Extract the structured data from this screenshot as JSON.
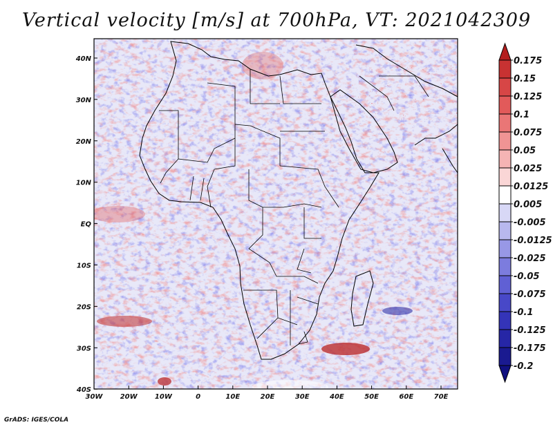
{
  "title": "Vertical velocity [m/s] at 700hPa, VT: 2021042309",
  "credit": "GrADS: IGES/COLA",
  "map": {
    "region": "Africa and surrounding oceans",
    "lon_range": [
      -30,
      76
    ],
    "lat_range": [
      -40,
      45
    ],
    "lon_ticks": [
      "30W",
      "20W",
      "10W",
      "0",
      "10E",
      "20E",
      "30E",
      "40E",
      "50E",
      "60E",
      "70E"
    ],
    "lat_ticks": [
      "40N",
      "30N",
      "20N",
      "10N",
      "EQ",
      "10S",
      "20S",
      "30S",
      "40S"
    ]
  },
  "colorbar": {
    "labels": [
      "0.175",
      "0.15",
      "0.125",
      "0.1",
      "0.075",
      "0.05",
      "0.025",
      "0.0125",
      "0.005",
      "-0.005",
      "-0.0125",
      "-0.025",
      "-0.05",
      "-0.075",
      "-0.1",
      "-0.125",
      "-0.175",
      "-0.2"
    ],
    "colors": [
      "#b41e1e",
      "#c83232",
      "#d74646",
      "#e25a5a",
      "#ea7676",
      "#f09494",
      "#f5b4b4",
      "#fad6d6",
      "#ffffff",
      "#d8d8f6",
      "#b8b8ee",
      "#9898e6",
      "#7c7cde",
      "#6060d4",
      "#4848c8",
      "#3434b8",
      "#2626a6",
      "#1a1a90",
      "#101080"
    ]
  },
  "colors": {
    "positive": "#e05050",
    "negative": "#5050d8",
    "border": "#000000"
  }
}
